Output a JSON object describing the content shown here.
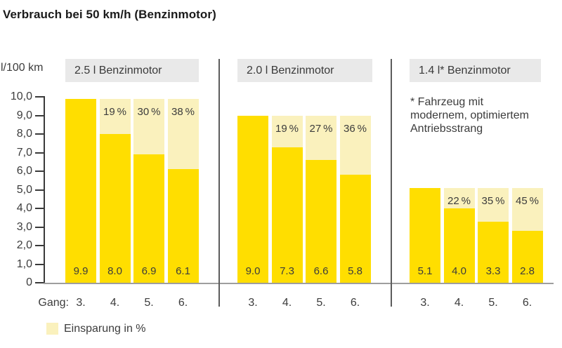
{
  "title": "Verbrauch bei 50 km/h (Benzinmotor)",
  "y_axis": {
    "unit_label": "l/100 km",
    "ticks": [
      {
        "label": "10,0",
        "value": 10
      },
      {
        "label": "9,0",
        "value": 9
      },
      {
        "label": "8,0",
        "value": 8
      },
      {
        "label": "7,0",
        "value": 7
      },
      {
        "label": "6,0",
        "value": 6
      },
      {
        "label": "5,0",
        "value": 5
      },
      {
        "label": "4,0",
        "value": 4
      },
      {
        "label": "3,0",
        "value": 3
      },
      {
        "label": "2,0",
        "value": 2
      },
      {
        "label": "1,0",
        "value": 1
      },
      {
        "label": "0",
        "value": 0
      }
    ]
  },
  "x_axis": {
    "label": "Gang:",
    "categories": [
      "3.",
      "4.",
      "5.",
      "6."
    ]
  },
  "legend": {
    "label": "Einsparung in %"
  },
  "footnote": {
    "lines": [
      "* Fahrzeug mit",
      "modernem, optimiertem",
      "Antriebsstrang"
    ]
  },
  "colors": {
    "consumption_bar": "#ffde00",
    "saving_bar": "#faf1bd",
    "header_bg": "#e9e9e9",
    "axis": "#3a3a3a",
    "baseline": "#9e9e9e",
    "separator": "#5c5c5c",
    "text": "#3c3c3c"
  },
  "chart_data": {
    "type": "bar",
    "stacked": true,
    "title": "Verbrauch bei 50 km/h (Benzinmotor)",
    "ylabel": "l/100 km",
    "xlabel": "Gang",
    "ylim": [
      0,
      10
    ],
    "grid": false,
    "legend_position": "bottom-left",
    "categories": [
      "3.",
      "4.",
      "5.",
      "6."
    ],
    "groups": [
      {
        "label": "2.5 l Benzinmotor",
        "consumption_l_per_100km": [
          9.9,
          8.0,
          6.9,
          6.1
        ],
        "savings_percent": [
          null,
          19,
          30,
          38
        ]
      },
      {
        "label": "2.0 l Benzinmotor",
        "consumption_l_per_100km": [
          9.0,
          7.3,
          6.6,
          5.8
        ],
        "savings_percent": [
          null,
          19,
          27,
          36
        ]
      },
      {
        "label": "1.4 l* Benzinmotor",
        "consumption_l_per_100km": [
          5.1,
          4.0,
          3.3,
          2.8
        ],
        "savings_percent": [
          null,
          22,
          35,
          45
        ]
      }
    ],
    "legend_entries": [
      "Einsparung in %"
    ]
  }
}
